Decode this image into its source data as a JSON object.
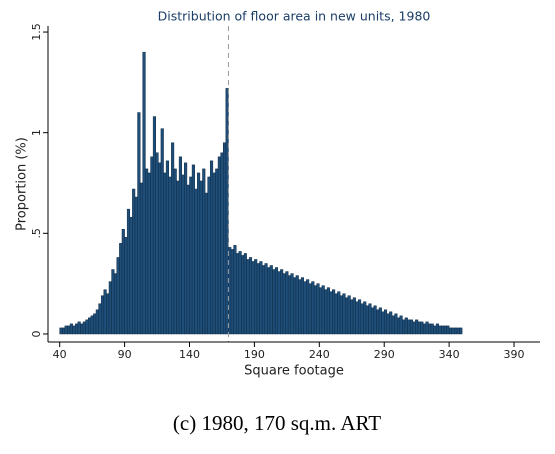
{
  "chart_data": {
    "type": "histogram",
    "title": "Distribution of floor area in new units, 1980",
    "x_label": "Square footage",
    "y_label": "Proportion (%)",
    "caption": "(c) 1980, 170 sq.m. ART",
    "color": "#1f4e79",
    "edge_color": "#0d2a45",
    "vline": 170,
    "xlim": [
      31,
      410
    ],
    "ylim": [
      -0.04,
      1.53
    ],
    "xticks": [
      40,
      90,
      140,
      190,
      240,
      290,
      340,
      390
    ],
    "yticks": [
      0,
      {
        "value": 0.5,
        "label": ".5"
      },
      1,
      1.5
    ],
    "bins": [
      40,
      42,
      44,
      46,
      48,
      50,
      52,
      54,
      56,
      58,
      60,
      62,
      64,
      66,
      68,
      70,
      72,
      74,
      76,
      78,
      80,
      82,
      84,
      86,
      88,
      90,
      92,
      94,
      96,
      98,
      100,
      102,
      104,
      106,
      108,
      110,
      112,
      114,
      116,
      118,
      120,
      122,
      124,
      126,
      128,
      130,
      132,
      134,
      136,
      138,
      140,
      142,
      144,
      146,
      148,
      150,
      152,
      154,
      156,
      158,
      160,
      162,
      164,
      166,
      168,
      170,
      172,
      174,
      176,
      178,
      180,
      182,
      184,
      186,
      188,
      190,
      192,
      194,
      196,
      198,
      200,
      202,
      204,
      206,
      208,
      210,
      212,
      214,
      216,
      218,
      220,
      222,
      224,
      226,
      228,
      230,
      232,
      234,
      236,
      238,
      240,
      242,
      244,
      246,
      248,
      250,
      252,
      254,
      256,
      258,
      260,
      262,
      264,
      266,
      268,
      270,
      272,
      274,
      276,
      278,
      280,
      282,
      284,
      286,
      288,
      290,
      292,
      294,
      296,
      298,
      300,
      302,
      304,
      306,
      308,
      310,
      312,
      314,
      316,
      318,
      320,
      322,
      324,
      326,
      328,
      330,
      332,
      334,
      336,
      338,
      340,
      342,
      344,
      346,
      348,
      350
    ],
    "counts": [
      0.03,
      0.03,
      0.04,
      0.04,
      0.05,
      0.04,
      0.05,
      0.06,
      0.05,
      0.06,
      0.07,
      0.08,
      0.09,
      0.1,
      0.12,
      0.15,
      0.19,
      0.22,
      0.2,
      0.26,
      0.32,
      0.3,
      0.38,
      0.45,
      0.52,
      0.48,
      0.62,
      0.58,
      0.72,
      0.68,
      1.1,
      0.75,
      1.4,
      0.82,
      0.8,
      0.88,
      1.08,
      0.9,
      0.85,
      1.02,
      0.8,
      0.86,
      0.78,
      0.95,
      0.82,
      0.76,
      0.88,
      0.79,
      0.85,
      0.74,
      0.78,
      0.84,
      0.72,
      0.8,
      0.76,
      0.82,
      0.7,
      0.78,
      0.86,
      0.8,
      0.82,
      0.88,
      0.9,
      0.95,
      1.22,
      0.43,
      0.42,
      0.44,
      0.4,
      0.41,
      0.39,
      0.4,
      0.37,
      0.38,
      0.36,
      0.37,
      0.35,
      0.36,
      0.34,
      0.35,
      0.33,
      0.34,
      0.32,
      0.33,
      0.31,
      0.32,
      0.3,
      0.31,
      0.29,
      0.3,
      0.28,
      0.29,
      0.27,
      0.28,
      0.26,
      0.27,
      0.25,
      0.26,
      0.24,
      0.25,
      0.23,
      0.24,
      0.22,
      0.23,
      0.21,
      0.22,
      0.2,
      0.21,
      0.19,
      0.2,
      0.18,
      0.19,
      0.17,
      0.18,
      0.16,
      0.17,
      0.15,
      0.16,
      0.14,
      0.15,
      0.13,
      0.14,
      0.12,
      0.13,
      0.11,
      0.12,
      0.1,
      0.11,
      0.09,
      0.1,
      0.08,
      0.09,
      0.07,
      0.08,
      0.07,
      0.07,
      0.06,
      0.07,
      0.06,
      0.06,
      0.05,
      0.06,
      0.05,
      0.05,
      0.04,
      0.05,
      0.04,
      0.04,
      0.04,
      0.04,
      0.03,
      0.03,
      0.03,
      0.03,
      0.03
    ]
  }
}
